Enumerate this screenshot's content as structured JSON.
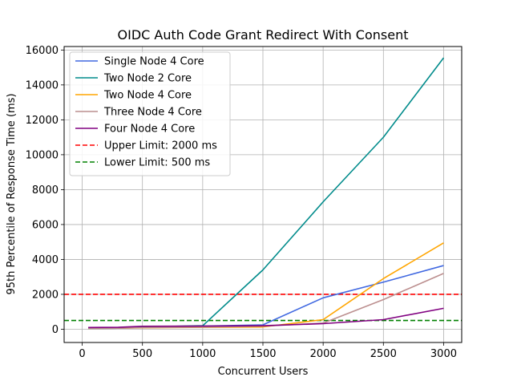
{
  "chart_data": {
    "type": "line",
    "title": "OIDC Auth Code Grant Redirect With Consent",
    "xlabel": "Concurrent Users",
    "ylabel": "95th Percentile of Response Time (ms)",
    "xlim": [
      -150,
      3150
    ],
    "ylim": [
      -760,
      16200
    ],
    "xticks": [
      0,
      500,
      1000,
      1500,
      2000,
      2500,
      3000
    ],
    "yticks": [
      0,
      2000,
      4000,
      6000,
      8000,
      10000,
      12000,
      14000,
      16000
    ],
    "grid": true,
    "legend_position": "top-left",
    "x": [
      50,
      300,
      500,
      1000,
      1500,
      2000,
      2500,
      3000
    ],
    "series": [
      {
        "name": "Single Node 4 Core",
        "color": "#4169e1",
        "style": "solid",
        "values": [
          50,
          60,
          130,
          180,
          250,
          1800,
          2700,
          3650
        ]
      },
      {
        "name": "Two Node 2 Core",
        "color": "#008b8b",
        "style": "solid",
        "values": [
          50,
          60,
          130,
          200,
          3400,
          7300,
          11000,
          15550
        ]
      },
      {
        "name": "Two Node 4 Core",
        "color": "#ffa500",
        "style": "solid",
        "values": [
          50,
          60,
          80,
          110,
          130,
          550,
          2900,
          4950
        ]
      },
      {
        "name": "Three Node 4 Core",
        "color": "#bc8f8f",
        "style": "solid",
        "values": [
          50,
          60,
          90,
          120,
          180,
          350,
          1700,
          3200
        ]
      },
      {
        "name": "Four Node 4 Core",
        "color": "#800080",
        "style": "solid",
        "values": [
          100,
          110,
          170,
          180,
          200,
          320,
          550,
          1200
        ]
      }
    ],
    "reference_lines": [
      {
        "name": "Upper Limit: 2000 ms",
        "y": 2000,
        "color": "#ff0000",
        "style": "dashed"
      },
      {
        "name": "Lower Limit: 500 ms",
        "y": 500,
        "color": "#008000",
        "style": "dashed"
      }
    ]
  }
}
